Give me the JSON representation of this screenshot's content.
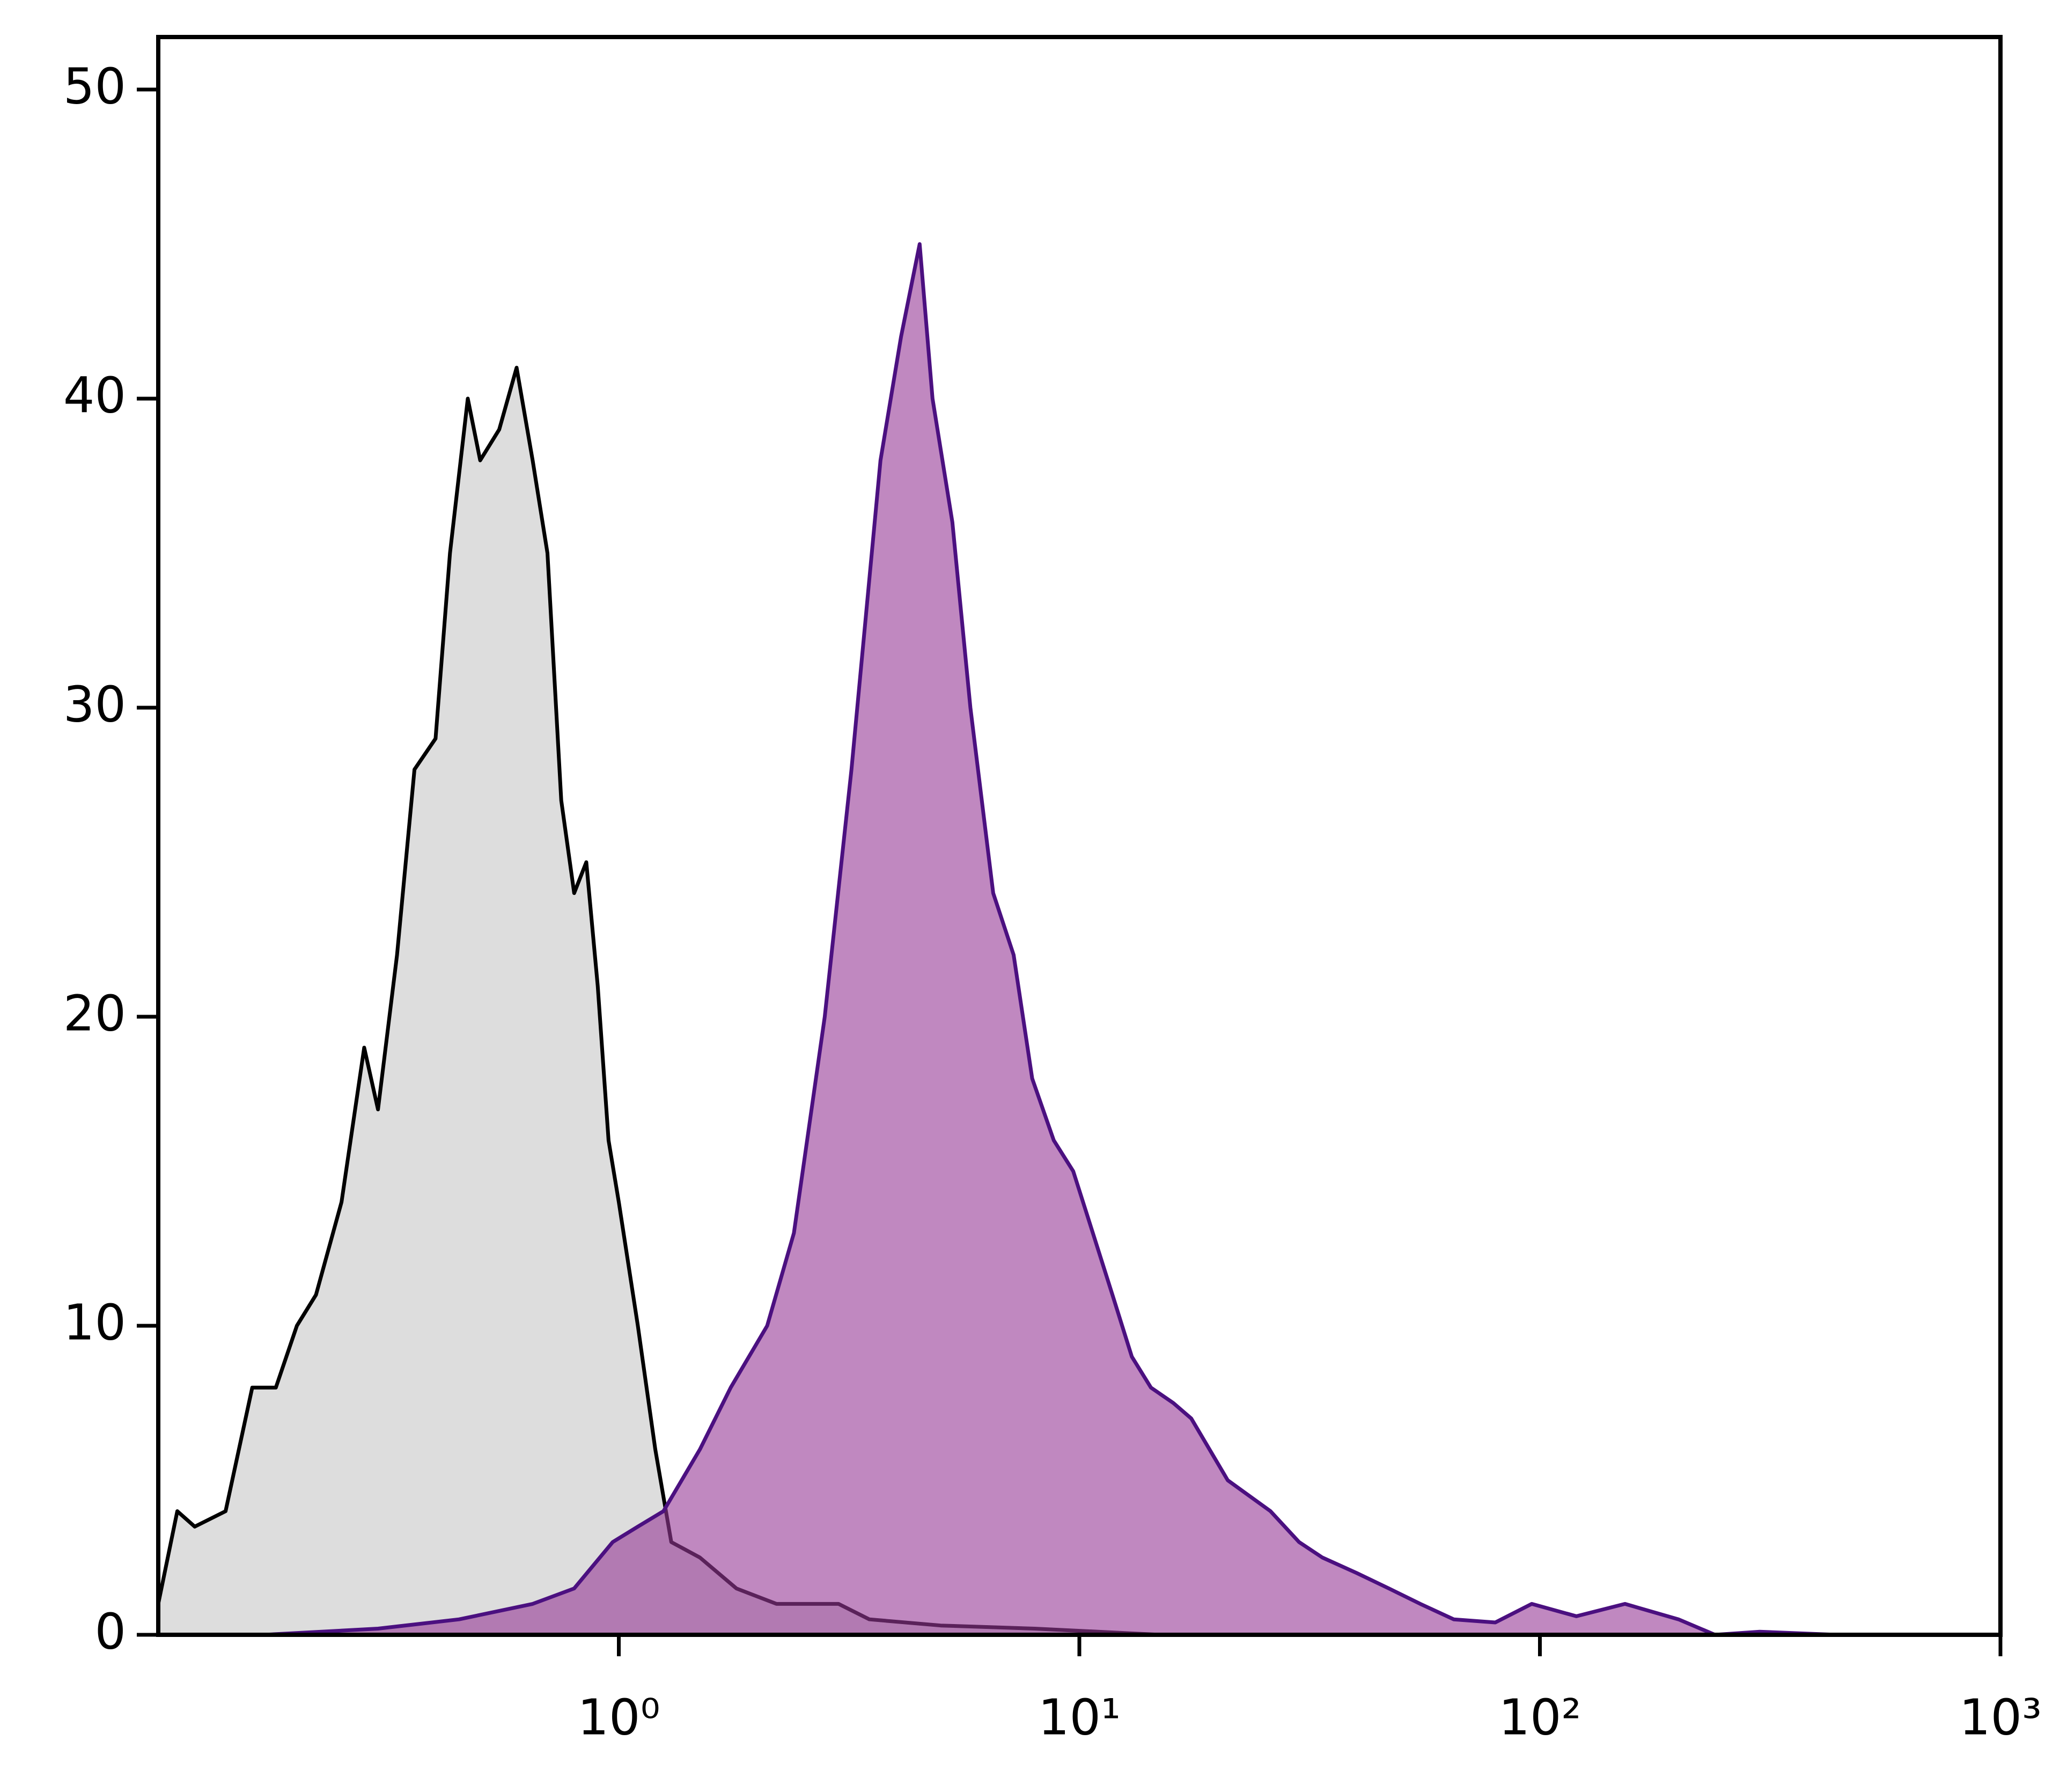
{
  "chart_data": {
    "type": "area",
    "xscale": "log",
    "xlim": [
      0.1,
      1000
    ],
    "xticks": [
      {
        "value": 1,
        "label": "10⁰"
      },
      {
        "value": 10,
        "label": "10¹"
      },
      {
        "value": 100,
        "label": "10²"
      },
      {
        "value": 1000,
        "label": "10³"
      }
    ],
    "ylim": [
      0,
      51.7
    ],
    "yticks": [
      0,
      10,
      20,
      30,
      40,
      50
    ],
    "series": [
      {
        "color": "#000000",
        "fill": "#dddddd",
        "x": [
          0.1,
          0.11,
          0.12,
          0.14,
          0.16,
          0.18,
          0.2,
          0.22,
          0.25,
          0.28,
          0.3,
          0.33,
          0.36,
          0.4,
          0.43,
          0.47,
          0.5,
          0.55,
          0.6,
          0.65,
          0.7,
          0.75,
          0.8,
          0.85,
          0.9,
          0.95,
          1.0,
          1.1,
          1.2,
          1.3,
          1.5,
          1.8,
          2.2,
          3,
          3.5,
          5,
          8,
          15
        ],
        "values": [
          1,
          4,
          3.5,
          4,
          8,
          8,
          10,
          11,
          14,
          19,
          17,
          22,
          28,
          29,
          35,
          40,
          38,
          39,
          41,
          38,
          35,
          27,
          24,
          25,
          21,
          16,
          14,
          10,
          6,
          3,
          2.5,
          1.5,
          1,
          1,
          0.5,
          0.3,
          0.2,
          0
        ]
      },
      {
        "color": "#4b1080",
        "fill": "#963996",
        "x": [
          0.17,
          0.3,
          0.45,
          0.65,
          0.8,
          0.97,
          1.1,
          1.25,
          1.5,
          1.75,
          2.1,
          2.4,
          2.8,
          3.2,
          3.7,
          4.1,
          4.5,
          4.8,
          5.3,
          5.8,
          6.5,
          7.2,
          7.9,
          8.8,
          9.7,
          10.7,
          11.8,
          13,
          14.3,
          16,
          17.5,
          21,
          26,
          30,
          33.7,
          40,
          47,
          55,
          65,
          80,
          96,
          120,
          153,
          200,
          240,
          300,
          440,
          1000
        ],
        "values": [
          0,
          0.2,
          0.5,
          1,
          1.5,
          3,
          3.5,
          4,
          6,
          8,
          10,
          13,
          20,
          28,
          38,
          42,
          45,
          40,
          36,
          30,
          24,
          22,
          18,
          16,
          15,
          13,
          11,
          9,
          8,
          7.5,
          7,
          5,
          4,
          3,
          2.5,
          2,
          1.5,
          1,
          0.5,
          0.4,
          1,
          0.6,
          1,
          0.5,
          0,
          0.1,
          0,
          0
        ]
      }
    ]
  }
}
